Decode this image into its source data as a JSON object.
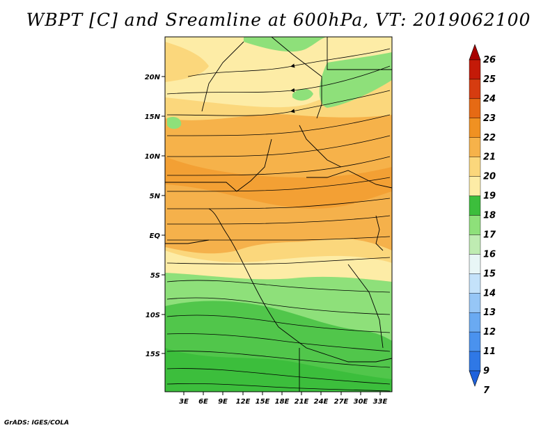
{
  "title": "WBPT [C] and Sreamline at 600hPa, VT: 2019062100",
  "credit": "GrADS: IGES/COLA",
  "map": {
    "lat_labels": [
      "20N",
      "15N",
      "10N",
      "5N",
      "EQ",
      "5S",
      "10S",
      "15S"
    ],
    "lon_labels": [
      "3E",
      "6E",
      "9E",
      "12E",
      "15E",
      "18E",
      "21E",
      "24E",
      "27E",
      "30E",
      "33E"
    ]
  },
  "colorbar": {
    "labels": [
      "7",
      "9",
      "11",
      "12",
      "13",
      "14",
      "15",
      "16",
      "17",
      "18",
      "19",
      "20",
      "21",
      "22",
      "23",
      "24",
      "25",
      "26"
    ],
    "colors": [
      "#1f62dc",
      "#2f78e6",
      "#4a92ee",
      "#6aaaf2",
      "#96c6f6",
      "#c4e2fa",
      "#e8f6f6",
      "#bfecb2",
      "#8ee07a",
      "#3cbe3c",
      "#fdeca6",
      "#fbd77c",
      "#f6b24a",
      "#f09122",
      "#e66a14",
      "#d63c10",
      "#c41a08",
      "#a80000"
    ]
  }
}
